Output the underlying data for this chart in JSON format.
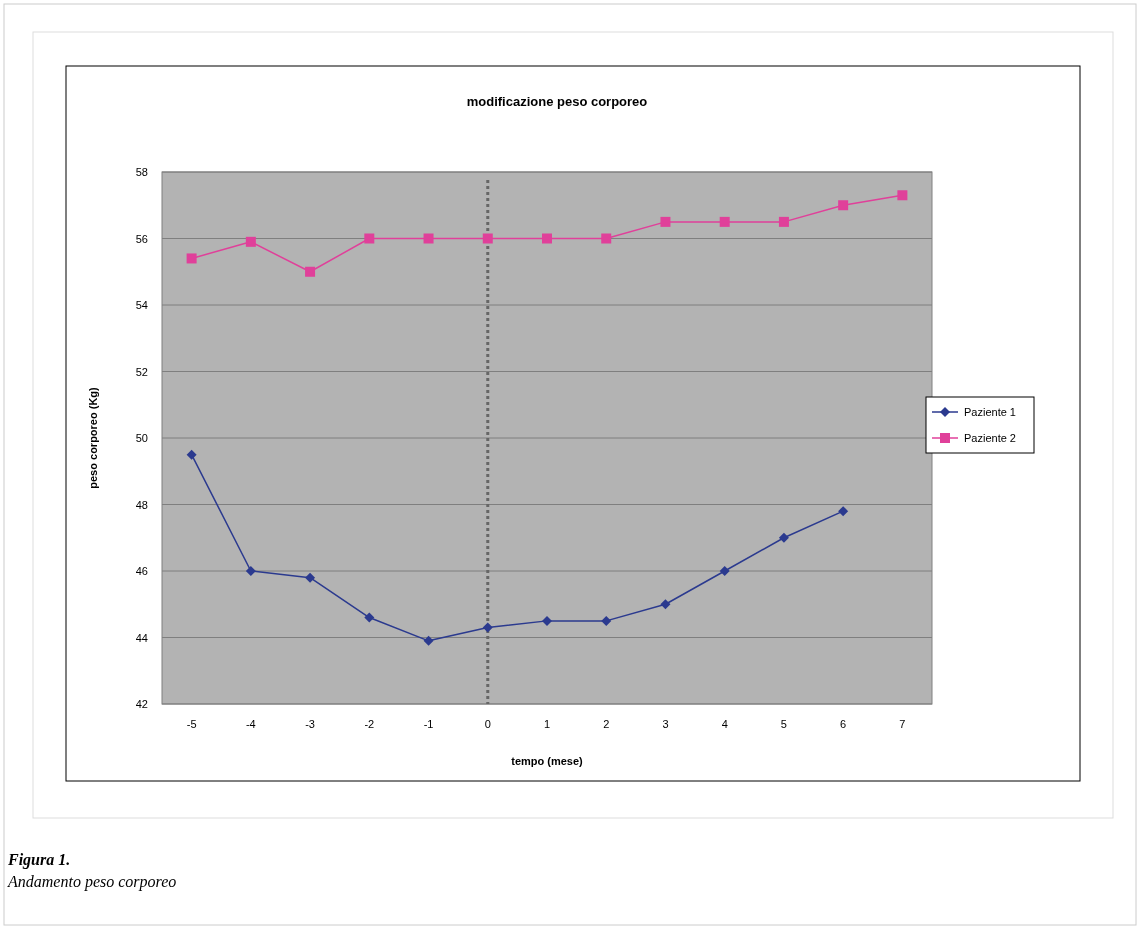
{
  "chart_data": {
    "type": "line",
    "title": "modificazione peso corporeo",
    "xlabel": "tempo (mese)",
    "ylabel": "peso corporeo (Kg)",
    "x": [
      -5,
      -4,
      -3,
      -2,
      -1,
      0,
      1,
      2,
      3,
      4,
      5,
      6,
      7
    ],
    "xlim": [
      -5.5,
      7.5
    ],
    "xticks": [
      -5,
      -4,
      -3,
      -2,
      -1,
      0,
      1,
      2,
      3,
      4,
      5,
      6,
      7
    ],
    "ylim": [
      42,
      58
    ],
    "yticks": [
      42,
      44,
      46,
      48,
      50,
      52,
      54,
      56,
      58
    ],
    "grid": "y",
    "legend": "right",
    "series": [
      {
        "name": "Paziente 1",
        "color": "#2b3a8f",
        "marker": "diamond",
        "values": [
          49.5,
          46.0,
          45.8,
          44.6,
          43.9,
          44.3,
          44.5,
          44.5,
          45.0,
          46.0,
          47.0,
          47.8,
          null
        ]
      },
      {
        "name": "Paziente 2",
        "color": "#e0409a",
        "marker": "square",
        "values": [
          55.4,
          55.9,
          55.0,
          56.0,
          56.0,
          56.0,
          56.0,
          56.0,
          56.5,
          56.5,
          56.5,
          57.0,
          57.3
        ]
      }
    ],
    "ref_lines": [
      {
        "axis": "x",
        "value": 0,
        "color": "#666666",
        "line_style": "dotted"
      }
    ],
    "annotations": [
      "Figura 1.",
      "Andamento peso corporeo"
    ]
  }
}
